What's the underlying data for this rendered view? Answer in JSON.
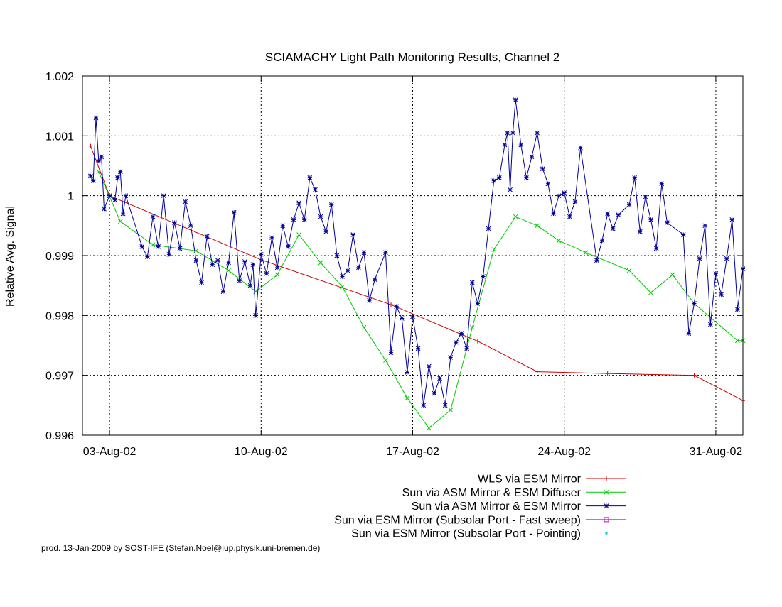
{
  "chart_data": {
    "type": "line",
    "title": "SCIAMACHY Light Path Monitoring Results, Channel 2",
    "xlabel": "",
    "ylabel": "Relative Avg. Signal",
    "xlim": [
      "2002-08-01T18:00",
      "2002-09-01T06:00"
    ],
    "ylim": [
      0.996,
      1.002
    ],
    "x_ticks": [
      "03-Aug-02",
      "10-Aug-02",
      "17-Aug-02",
      "24-Aug-02",
      "31-Aug-02"
    ],
    "x_tick_dates": [
      "2002-08-03",
      "2002-08-10",
      "2002-08-17",
      "2002-08-24",
      "2002-08-31"
    ],
    "y_ticks": [
      "0.996",
      "0.997",
      "0.998",
      "0.999",
      "1",
      "1.001",
      "1.002"
    ],
    "y_tick_values": [
      0.996,
      0.997,
      0.998,
      0.999,
      1.0,
      1.001,
      1.002
    ],
    "grid": true,
    "legend_position": "below-right",
    "series": [
      {
        "name": "WLS via ESM Mirror",
        "color": "#cc0000",
        "marker": "plus",
        "points": [
          [
            "2002-08-02T03:00",
            1.00083
          ],
          [
            "2002-08-03T00:00",
            1.0
          ],
          [
            "2002-08-10T00:00",
            0.99893
          ],
          [
            "2002-08-16T00:00",
            0.99818
          ],
          [
            "2002-08-20T00:00",
            0.99757
          ],
          [
            "2002-08-22T18:00",
            0.99706
          ],
          [
            "2002-08-26T00:00",
            0.99703
          ],
          [
            "2002-08-30T00:00",
            0.997
          ],
          [
            "2002-09-01T06:00",
            0.99658
          ]
        ]
      },
      {
        "name": "Sun via ASM Mirror & ESM Diffuser",
        "color": "#00cc00",
        "marker": "cross",
        "points": [
          [
            "2002-08-02T12:00",
            1.0004
          ],
          [
            "2002-08-03T12:00",
            0.99957
          ],
          [
            "2002-08-05T00:00",
            0.99918
          ],
          [
            "2002-08-07T00:00",
            0.99908
          ],
          [
            "2002-08-08T12:00",
            0.99875
          ],
          [
            "2002-08-09T18:00",
            0.9984
          ],
          [
            "2002-08-10T18:00",
            0.99868
          ],
          [
            "2002-08-11T18:00",
            0.99935
          ],
          [
            "2002-08-12T18:00",
            0.99888
          ],
          [
            "2002-08-13T18:00",
            0.99848
          ],
          [
            "2002-08-14T18:00",
            0.9978
          ],
          [
            "2002-08-15T18:00",
            0.99725
          ],
          [
            "2002-08-16T18:00",
            0.99662
          ],
          [
            "2002-08-17T18:00",
            0.99612
          ],
          [
            "2002-08-18T18:00",
            0.99642
          ],
          [
            "2002-08-19T18:00",
            0.9978
          ],
          [
            "2002-08-20T18:00",
            0.9991
          ],
          [
            "2002-08-21T18:00",
            0.99965
          ],
          [
            "2002-08-22T18:00",
            0.9995
          ],
          [
            "2002-08-23T18:00",
            0.99925
          ],
          [
            "2002-08-25T00:00",
            0.99905
          ],
          [
            "2002-08-27T00:00",
            0.99875
          ],
          [
            "2002-08-28T00:00",
            0.99838
          ],
          [
            "2002-08-29T00:00",
            0.99868
          ],
          [
            "2002-08-30T00:00",
            0.9982
          ],
          [
            "2002-09-01T00:00",
            0.99758
          ],
          [
            "2002-09-01T06:00",
            0.99758
          ]
        ]
      },
      {
        "name": "Sun via ASM Mirror & ESM Mirror",
        "color": "#000099",
        "marker": "star",
        "points": [
          [
            "2002-08-02T03:00",
            1.00033
          ],
          [
            "2002-08-02T06:00",
            1.00025
          ],
          [
            "2002-08-02T09:00",
            1.0013
          ],
          [
            "2002-08-02T12:00",
            1.00058
          ],
          [
            "2002-08-02T15:00",
            1.00065
          ],
          [
            "2002-08-02T18:00",
            0.99978
          ],
          [
            "2002-08-03T00:00",
            1.0
          ],
          [
            "2002-08-03T06:00",
            0.99993
          ],
          [
            "2002-08-03T09:00",
            1.0003
          ],
          [
            "2002-08-03T12:00",
            1.0004
          ],
          [
            "2002-08-03T15:00",
            0.9997
          ],
          [
            "2002-08-03T18:00",
            1.0
          ],
          [
            "2002-08-04T12:00",
            0.99915
          ],
          [
            "2002-08-04T18:00",
            0.99898
          ],
          [
            "2002-08-05T00:00",
            0.99965
          ],
          [
            "2002-08-05T06:00",
            0.99915
          ],
          [
            "2002-08-05T12:00",
            1.0
          ],
          [
            "2002-08-05T18:00",
            0.99902
          ],
          [
            "2002-08-06T00:00",
            0.99955
          ],
          [
            "2002-08-06T06:00",
            0.99912
          ],
          [
            "2002-08-06T12:00",
            0.9999
          ],
          [
            "2002-08-06T18:00",
            0.9995
          ],
          [
            "2002-08-07T00:00",
            0.99892
          ],
          [
            "2002-08-07T06:00",
            0.99855
          ],
          [
            "2002-08-07T12:00",
            0.99932
          ],
          [
            "2002-08-07T18:00",
            0.99885
          ],
          [
            "2002-08-08T00:00",
            0.99892
          ],
          [
            "2002-08-08T06:00",
            0.9984
          ],
          [
            "2002-08-08T12:00",
            0.99888
          ],
          [
            "2002-08-08T18:00",
            0.99972
          ],
          [
            "2002-08-09T00:00",
            0.99858
          ],
          [
            "2002-08-09T06:00",
            0.9989
          ],
          [
            "2002-08-09T12:00",
            0.9985
          ],
          [
            "2002-08-09T15:00",
            0.99885
          ],
          [
            "2002-08-09T18:00",
            0.998
          ],
          [
            "2002-08-10T00:00",
            0.99902
          ],
          [
            "2002-08-10T06:00",
            0.9987
          ],
          [
            "2002-08-10T12:00",
            0.9993
          ],
          [
            "2002-08-10T18:00",
            0.9988
          ],
          [
            "2002-08-11T00:00",
            0.9995
          ],
          [
            "2002-08-11T06:00",
            0.99915
          ],
          [
            "2002-08-11T12:00",
            0.9996
          ],
          [
            "2002-08-11T18:00",
            0.99988
          ],
          [
            "2002-08-12T00:00",
            0.9996
          ],
          [
            "2002-08-12T06:00",
            1.0003
          ],
          [
            "2002-08-12T12:00",
            1.0001
          ],
          [
            "2002-08-12T18:00",
            0.99965
          ],
          [
            "2002-08-13T00:00",
            0.9994
          ],
          [
            "2002-08-13T06:00",
            0.99985
          ],
          [
            "2002-08-13T12:00",
            0.999
          ],
          [
            "2002-08-13T18:00",
            0.99865
          ],
          [
            "2002-08-14T00:00",
            0.99875
          ],
          [
            "2002-08-14T06:00",
            0.99935
          ],
          [
            "2002-08-14T12:00",
            0.9988
          ],
          [
            "2002-08-14T18:00",
            0.99905
          ],
          [
            "2002-08-15T00:00",
            0.99825
          ],
          [
            "2002-08-15T06:00",
            0.9986
          ],
          [
            "2002-08-15T18:00",
            0.99905
          ],
          [
            "2002-08-16T00:00",
            0.99738
          ],
          [
            "2002-08-16T06:00",
            0.99815
          ],
          [
            "2002-08-16T12:00",
            0.99795
          ],
          [
            "2002-08-16T18:00",
            0.99705
          ],
          [
            "2002-08-17T00:00",
            0.99798
          ],
          [
            "2002-08-17T06:00",
            0.99745
          ],
          [
            "2002-08-17T12:00",
            0.9965
          ],
          [
            "2002-08-17T18:00",
            0.99715
          ],
          [
            "2002-08-18T00:00",
            0.9967
          ],
          [
            "2002-08-18T06:00",
            0.99695
          ],
          [
            "2002-08-18T12:00",
            0.9965
          ],
          [
            "2002-08-18T18:00",
            0.9973
          ],
          [
            "2002-08-19T00:00",
            0.99755
          ],
          [
            "2002-08-19T06:00",
            0.9977
          ],
          [
            "2002-08-19T12:00",
            0.99745
          ],
          [
            "2002-08-19T18:00",
            0.99855
          ],
          [
            "2002-08-20T00:00",
            0.9982
          ],
          [
            "2002-08-20T06:00",
            0.99865
          ],
          [
            "2002-08-20T12:00",
            0.99945
          ],
          [
            "2002-08-20T18:00",
            1.00025
          ],
          [
            "2002-08-21T00:00",
            1.0003
          ],
          [
            "2002-08-21T06:00",
            1.00085
          ],
          [
            "2002-08-21T09:00",
            1.00105
          ],
          [
            "2002-08-21T12:00",
            1.0001
          ],
          [
            "2002-08-21T15:00",
            1.00105
          ],
          [
            "2002-08-21T18:00",
            1.0016
          ],
          [
            "2002-08-22T00:00",
            1.00085
          ],
          [
            "2002-08-22T06:00",
            1.0003
          ],
          [
            "2002-08-22T12:00",
            1.00065
          ],
          [
            "2002-08-22T18:00",
            1.00105
          ],
          [
            "2002-08-23T00:00",
            1.00045
          ],
          [
            "2002-08-23T06:00",
            1.0002
          ],
          [
            "2002-08-23T12:00",
            0.9997
          ],
          [
            "2002-08-23T18:00",
            1.0
          ],
          [
            "2002-08-24T00:00",
            1.00005
          ],
          [
            "2002-08-24T06:00",
            0.99965
          ],
          [
            "2002-08-24T12:00",
            0.9999
          ],
          [
            "2002-08-24T18:00",
            1.0008
          ],
          [
            "2002-08-25T12:00",
            0.99892
          ],
          [
            "2002-08-25T18:00",
            0.99925
          ],
          [
            "2002-08-26T00:00",
            0.9997
          ],
          [
            "2002-08-26T06:00",
            0.99945
          ],
          [
            "2002-08-26T12:00",
            0.99968
          ],
          [
            "2002-08-27T00:00",
            0.99985
          ],
          [
            "2002-08-27T06:00",
            1.0003
          ],
          [
            "2002-08-27T12:00",
            0.9994
          ],
          [
            "2002-08-27T18:00",
            0.99998
          ],
          [
            "2002-08-28T00:00",
            0.9996
          ],
          [
            "2002-08-28T06:00",
            0.99912
          ],
          [
            "2002-08-28T12:00",
            1.0002
          ],
          [
            "2002-08-28T18:00",
            0.99955
          ],
          [
            "2002-08-29T12:00",
            0.99935
          ],
          [
            "2002-08-29T18:00",
            0.9977
          ],
          [
            "2002-08-30T00:00",
            0.9982
          ],
          [
            "2002-08-30T06:00",
            0.99895
          ],
          [
            "2002-08-30T12:00",
            0.9995
          ],
          [
            "2002-08-30T18:00",
            0.99785
          ],
          [
            "2002-08-31T00:00",
            0.9987
          ],
          [
            "2002-08-31T06:00",
            0.99835
          ],
          [
            "2002-08-31T12:00",
            0.99895
          ],
          [
            "2002-08-31T18:00",
            0.9996
          ],
          [
            "2002-09-01T00:00",
            0.9981
          ],
          [
            "2002-09-01T06:00",
            0.99878
          ]
        ]
      },
      {
        "name": "Sun via ESM Mirror (Subsolar Port - Fast sweep)",
        "color": "#cc00cc",
        "marker": "square",
        "points": []
      },
      {
        "name": "Sun via ESM Mirror (Subsolar Port - Pointing)",
        "color": "#00cccc",
        "marker": "dot",
        "points": []
      }
    ],
    "footer": "prod. 13-Jan-2009 by SOST-IFE (Stefan.Noel@iup.physik.uni-bremen.de)"
  }
}
